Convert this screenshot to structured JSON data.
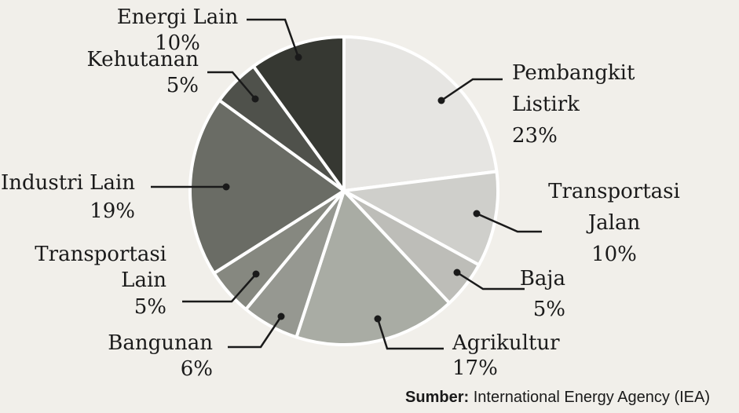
{
  "chart_data": {
    "type": "pie",
    "start_angle_deg": 0,
    "direction": "clockwise",
    "slices": [
      {
        "label_lines": [
          "Pembangkit",
          "Listirk"
        ],
        "pct_label": "23%",
        "value": 23,
        "color": "#e6e5e2"
      },
      {
        "label_lines": [
          "Transportasi",
          "Jalan"
        ],
        "pct_label": "10%",
        "value": 10,
        "color": "#cfcfcb"
      },
      {
        "label_lines": [
          "Baja"
        ],
        "pct_label": "5%",
        "value": 5,
        "color": "#bdbdb8"
      },
      {
        "label_lines": [
          "Agrikultur"
        ],
        "pct_label": "17%",
        "value": 17,
        "color": "#a9aca4"
      },
      {
        "label_lines": [
          "Bangunan"
        ],
        "pct_label": "6%",
        "value": 6,
        "color": "#969891"
      },
      {
        "label_lines": [
          "Transportasi",
          "Lain"
        ],
        "pct_label": "5%",
        "value": 5,
        "color": "#868880"
      },
      {
        "label_lines": [
          "Industri Lain"
        ],
        "pct_label": "19%",
        "value": 19,
        "color": "#6a6c65"
      },
      {
        "label_lines": [
          "Kehutanan"
        ],
        "pct_label": "5%",
        "value": 5,
        "color": "#4f514b"
      },
      {
        "label_lines": [
          "Energi Lain"
        ],
        "pct_label": "10%",
        "value": 10,
        "color": "#363832"
      }
    ]
  },
  "source": {
    "bold": "Sumber:",
    "text": "International Energy Agency (IEA)"
  }
}
